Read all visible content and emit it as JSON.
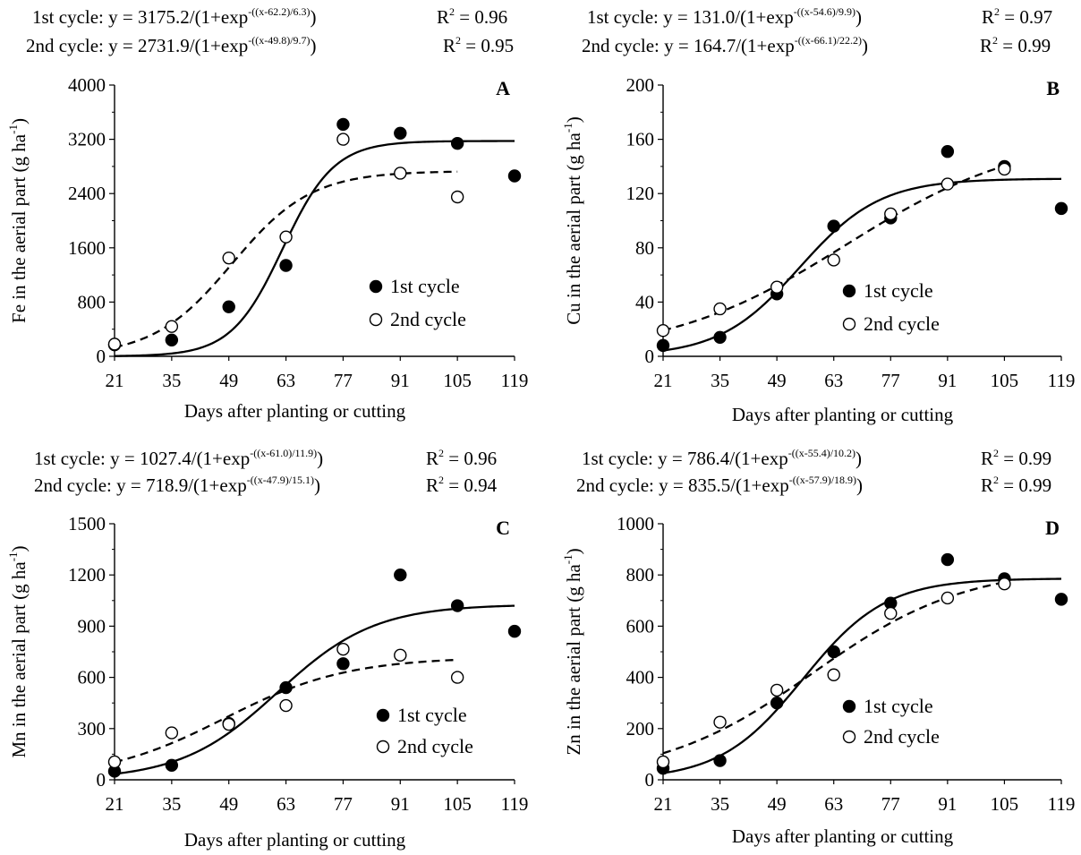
{
  "chart_data": [
    {
      "type": "scatter",
      "panel_letter": "A",
      "eq1": {
        "label": "1st cycle: y = 3175.2/(1+exp",
        "exp": "-((x-62.2)/6.3)",
        "close": ")",
        "r2": "0.96"
      },
      "eq2": {
        "label": "2nd cycle: y = 2731.9/(1+exp",
        "exp": "-((x-49.8)/9.7)",
        "close": ")",
        "r2": "0.95"
      },
      "ylabel": "Fe in the aerial part (g ha",
      "xlabel": "Days after planting or cutting",
      "ylim": [
        0,
        4000
      ],
      "yticks": [
        0,
        800,
        1600,
        2400,
        3200,
        4000
      ],
      "xticks": [
        21,
        35,
        49,
        63,
        77,
        91,
        105,
        119
      ],
      "series": [
        {
          "name": "1st cycle",
          "marker": "filled",
          "line": "solid",
          "x": [
            21,
            35,
            49,
            63,
            77,
            91,
            105,
            119
          ],
          "y": [
            170,
            240,
            730,
            1340,
            3420,
            3290,
            3140,
            2660
          ],
          "fit": {
            "a": 3175.2,
            "b": 62.2,
            "c": 6.3,
            "x_range": [
              21,
              119
            ]
          }
        },
        {
          "name": "2nd cycle",
          "marker": "open",
          "line": "dashed",
          "x": [
            21,
            35,
            49,
            63,
            77,
            91,
            105
          ],
          "y": [
            180,
            440,
            1450,
            1760,
            3200,
            2700,
            2350
          ],
          "fit": {
            "a": 2731.9,
            "b": 49.8,
            "c": 9.7,
            "x_range": [
              21,
              105
            ]
          }
        }
      ]
    },
    {
      "type": "scatter",
      "panel_letter": "B",
      "eq1": {
        "label": "1st cycle: y = 131.0/(1+exp",
        "exp": "-((x-54.6)/9.9)",
        "close": ")",
        "r2": "0.97"
      },
      "eq2": {
        "label": "2nd cycle: y = 164.7/(1+exp",
        "exp": "-((x-66.1)/22.2)",
        "close": ")",
        "r2": "0.99"
      },
      "ylabel": "Cu in the aerial part (g ha",
      "xlabel": "Days after planting or cutting",
      "ylim": [
        0,
        200
      ],
      "yticks": [
        0,
        40,
        80,
        120,
        160,
        200
      ],
      "xticks": [
        21,
        35,
        49,
        63,
        77,
        91,
        105,
        119
      ],
      "series": [
        {
          "name": "1st cycle",
          "marker": "filled",
          "line": "solid",
          "x": [
            21,
            35,
            49,
            63,
            77,
            91,
            105,
            119
          ],
          "y": [
            8,
            14,
            46,
            96,
            102,
            151,
            140,
            109
          ],
          "fit": {
            "a": 131.0,
            "b": 54.6,
            "c": 9.9,
            "x_range": [
              21,
              119
            ]
          }
        },
        {
          "name": "2nd cycle",
          "marker": "open",
          "line": "dashed",
          "x": [
            21,
            35,
            49,
            63,
            77,
            91,
            105
          ],
          "y": [
            19,
            35,
            51,
            71,
            105,
            127,
            138
          ],
          "fit": {
            "a": 164.7,
            "b": 66.1,
            "c": 22.2,
            "x_range": [
              21,
              105
            ]
          }
        }
      ]
    },
    {
      "type": "scatter",
      "panel_letter": "C",
      "eq1": {
        "label": "1st cycle: y = 1027.4/(1+exp",
        "exp": "-((x-61.0)/11.9)",
        "close": ")",
        "r2": "0.96"
      },
      "eq2": {
        "label": "2nd cycle: y = 718.9/(1+exp",
        "exp": "-((x-47.9)/15.1)",
        "close": ")",
        "r2": "0.94"
      },
      "ylabel": "Mn in the aerial part (g ha",
      "xlabel": "Days after planting or cutting",
      "ylim": [
        0,
        1500
      ],
      "yticks": [
        0,
        300,
        600,
        900,
        1200,
        1500
      ],
      "xticks": [
        21,
        35,
        49,
        63,
        77,
        91,
        105,
        119
      ],
      "series": [
        {
          "name": "1st cycle",
          "marker": "filled",
          "line": "solid",
          "x": [
            21,
            35,
            49,
            63,
            77,
            91,
            105,
            119
          ],
          "y": [
            50,
            85,
            330,
            540,
            680,
            1200,
            1020,
            870
          ],
          "fit": {
            "a": 1027.4,
            "b": 61.0,
            "c": 11.9,
            "x_range": [
              21,
              119
            ]
          }
        },
        {
          "name": "2nd cycle",
          "marker": "open",
          "line": "dashed",
          "x": [
            21,
            35,
            49,
            63,
            77,
            91,
            105
          ],
          "y": [
            105,
            275,
            325,
            435,
            765,
            730,
            600
          ],
          "fit": {
            "a": 718.9,
            "b": 47.9,
            "c": 15.1,
            "x_range": [
              21,
              105
            ]
          }
        }
      ]
    },
    {
      "type": "scatter",
      "panel_letter": "D",
      "eq1": {
        "label": "1st cycle: y = 786.4/(1+exp",
        "exp": "-((x-55.4)/10.2)",
        "close": ")",
        "r2": "0.99"
      },
      "eq2": {
        "label": "2nd cycle: y = 835.5/(1+exp",
        "exp": "-((x-57.9)/18.9)",
        "close": ")",
        "r2": "0.99"
      },
      "ylabel": "Zn in the aerial part (g ha",
      "xlabel": "Days after planting or cutting",
      "ylim": [
        0,
        1000
      ],
      "yticks": [
        0,
        200,
        400,
        600,
        800,
        1000
      ],
      "xticks": [
        21,
        35,
        49,
        63,
        77,
        91,
        105,
        119
      ],
      "series": [
        {
          "name": "1st cycle",
          "marker": "filled",
          "line": "solid",
          "x": [
            21,
            35,
            49,
            63,
            77,
            91,
            105,
            119
          ],
          "y": [
            45,
            75,
            300,
            500,
            690,
            860,
            785,
            705
          ],
          "fit": {
            "a": 786.4,
            "b": 55.4,
            "c": 10.2,
            "x_range": [
              21,
              119
            ]
          }
        },
        {
          "name": "2nd cycle",
          "marker": "open",
          "line": "dashed",
          "x": [
            21,
            35,
            49,
            63,
            77,
            91,
            105
          ],
          "y": [
            70,
            225,
            350,
            410,
            650,
            710,
            765
          ],
          "fit": {
            "a": 835.5,
            "b": 57.9,
            "c": 18.9,
            "x_range": [
              21,
              105
            ]
          }
        }
      ]
    }
  ]
}
